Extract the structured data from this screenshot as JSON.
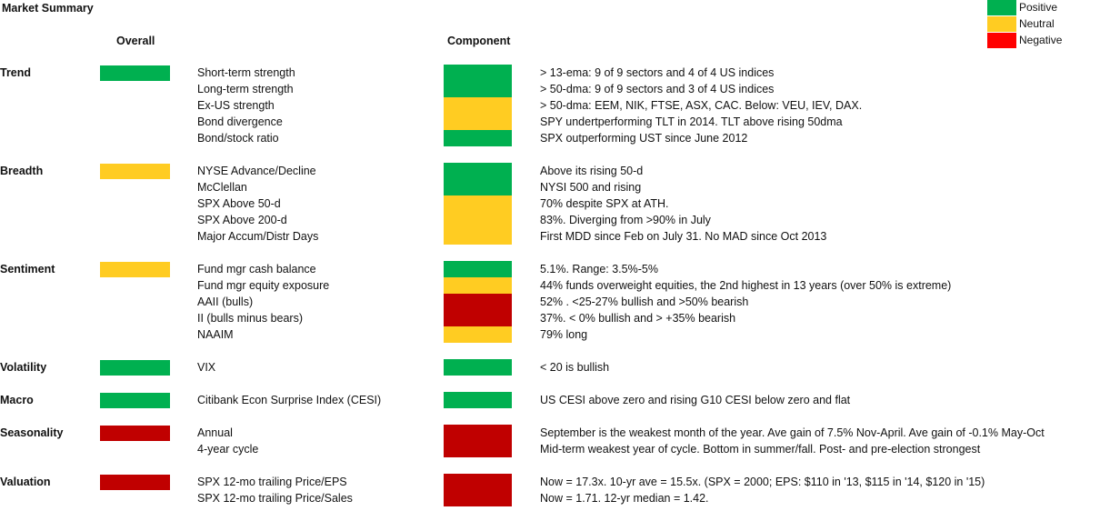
{
  "title": "Market Summary",
  "headers": {
    "overall": "Overall",
    "component": "Component"
  },
  "colors": {
    "positive": "#00b050",
    "neutral": "#ffcc22",
    "negative": "#c00000",
    "negative_legend": "#ff0000"
  },
  "legend": [
    {
      "label": "Positive",
      "status": "positive"
    },
    {
      "label": "Neutral",
      "status": "neutral"
    },
    {
      "label": "Negative",
      "status": "negative"
    }
  ],
  "sections": [
    {
      "name": "Trend",
      "overall": "positive",
      "rows": [
        {
          "indicator": "Short-term strength",
          "status": "positive",
          "comment": "> 13-ema: 9 of 9 sectors and 4 of 4 US indices"
        },
        {
          "indicator": "Long-term strength",
          "status": "positive",
          "comment": "> 50-dma: 9 of 9 sectors and 3 of 4 US indices"
        },
        {
          "indicator": "Ex-US strength",
          "status": "neutral",
          "comment": "> 50-dma: EEM, NIK, FTSE, ASX, CAC. Below: VEU, IEV, DAX."
        },
        {
          "indicator": "Bond divergence",
          "status": "neutral",
          "comment": "SPY undertperforming TLT in 2014. TLT above rising 50dma"
        },
        {
          "indicator": "Bond/stock ratio",
          "status": "positive",
          "comment": "SPX outperforming UST since June 2012"
        }
      ]
    },
    {
      "name": "Breadth",
      "overall": "neutral",
      "rows": [
        {
          "indicator": "NYSE Advance/Decline",
          "status": "positive",
          "comment": "Above its rising 50-d"
        },
        {
          "indicator": "McClellan",
          "status": "positive",
          "comment": "NYSI 500 and rising"
        },
        {
          "indicator": "SPX Above 50-d",
          "status": "neutral",
          "comment": "70% despite SPX at ATH."
        },
        {
          "indicator": "SPX Above 200-d",
          "status": "neutral",
          "comment": "83%. Diverging from >90% in July"
        },
        {
          "indicator": "Major Accum/Distr Days",
          "status": "neutral",
          "comment": "First MDD since Feb on July 31. No MAD since Oct 2013"
        }
      ]
    },
    {
      "name": "Sentiment",
      "overall": "neutral",
      "rows": [
        {
          "indicator": "Fund mgr cash balance",
          "status": "positive",
          "comment": "5.1%. Range: 3.5%-5%"
        },
        {
          "indicator": "Fund mgr equity exposure",
          "status": "neutral",
          "comment": "44% funds overweight equities, the 2nd highest in 13 years (over 50% is extreme)"
        },
        {
          "indicator": "AAII (bulls)",
          "status": "negative",
          "comment": "52% . <25-27% bullish and >50% bearish"
        },
        {
          "indicator": "II (bulls minus bears)",
          "status": "negative",
          "comment": "37%. < 0% bullish and > +35% bearish"
        },
        {
          "indicator": "NAAIM",
          "status": "neutral",
          "comment": "79% long"
        }
      ]
    },
    {
      "name": "Volatility",
      "overall": "positive",
      "rows": [
        {
          "indicator": "VIX",
          "status": "positive",
          "comment": "< 20 is bullish"
        }
      ]
    },
    {
      "name": "Macro",
      "overall": "positive",
      "rows": [
        {
          "indicator": "Citibank Econ Surprise Index (CESI)",
          "status": "positive",
          "comment": "US CESI above zero and rising  G10 CESI below zero and flat"
        }
      ]
    },
    {
      "name": "Seasonality",
      "overall": "negative",
      "rows": [
        {
          "indicator": "Annual",
          "status": "negative",
          "comment": "September is the weakest month of the year. Ave gain of 7.5% Nov-April. Ave gain of -0.1% May-Oct"
        },
        {
          "indicator": "4-year cycle",
          "status": "negative",
          "comment": "Mid-term weakest year of cycle. Bottom in summer/fall. Post- and pre-election strongest"
        }
      ]
    },
    {
      "name": "Valuation",
      "overall": "negative",
      "rows": [
        {
          "indicator": "SPX 12-mo trailing Price/EPS",
          "status": "negative",
          "comment": "Now = 17.3x. 10-yr ave = 15.5x.  (SPX = 2000; EPS: $110 in '13, $115 in '14, $120 in '15)"
        },
        {
          "indicator": "SPX 12-mo trailing Price/Sales",
          "status": "negative",
          "comment": "Now = 1.71. 12-yr median = 1.42."
        }
      ]
    }
  ]
}
